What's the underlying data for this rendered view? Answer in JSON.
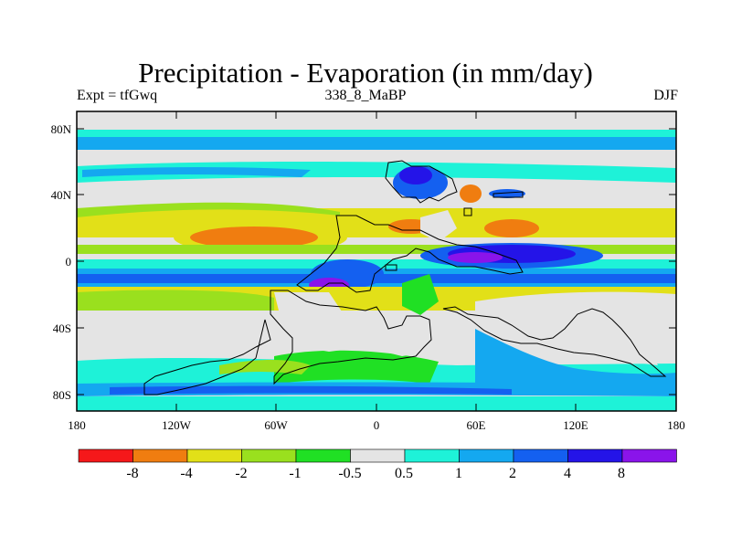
{
  "title": "Precipitation - Evaporation (in mm/day)",
  "subtitle_left": "Expt = tfGwq",
  "subtitle_center": "338_8_MaBP",
  "subtitle_right": "DJF",
  "y_ticks": [
    "80N",
    "40N",
    "0",
    "40S",
    "80S"
  ],
  "x_ticks": [
    "180",
    "120W",
    "60W",
    "0",
    "60E",
    "120E",
    "180"
  ],
  "colorbar": {
    "colors": [
      "#f5181a",
      "#f07d10",
      "#e2e018",
      "#9ae01e",
      "#20e024",
      "#e4e4e4",
      "#1ef2d8",
      "#14a8f0",
      "#1460f0",
      "#2414e8",
      "#8a14ea"
    ],
    "labels": [
      "-8",
      "-4",
      "-2",
      "-1",
      "-0.5",
      "0.5",
      "1",
      "2",
      "4",
      "8"
    ]
  }
}
